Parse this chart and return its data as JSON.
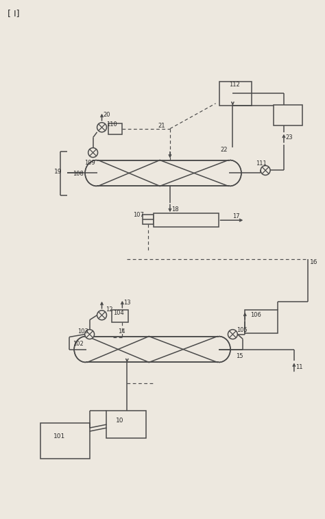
{
  "bg_color": "#ede8df",
  "line_color": "#4a4a4a",
  "label_color": "#2a2a2a",
  "fig_label": "[ I]",
  "fig_width": 4.74,
  "fig_height": 7.57,
  "dpi": 100
}
